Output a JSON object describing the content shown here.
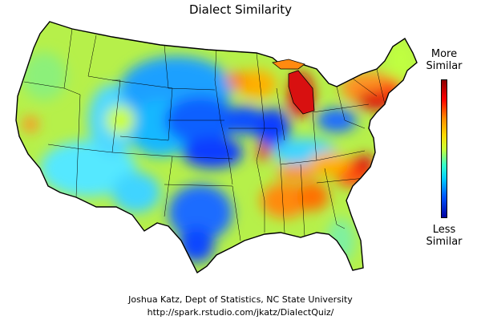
{
  "title": "Dialect Similarity",
  "legend": {
    "top_label_1": "More",
    "top_label_2": "Similar",
    "bottom_label_1": "Less",
    "bottom_label_2": "Similar",
    "scale_colors": [
      "#8b0000",
      "#ff0000",
      "#ff8c00",
      "#ffd700",
      "#ccff33",
      "#33ffcc",
      "#00ccff",
      "#0055ff",
      "#0000a0"
    ]
  },
  "credit": {
    "line1": "Joshua Katz, Dept of Statistics, NC State University",
    "line2": "http://spark.rstudio.com/jkatz/DialectQuiz/"
  },
  "map": {
    "region": "contiguous-us",
    "boundaries": "state-borders",
    "base_color": "#b6f04a",
    "hotspot_colors": {
      "very_high": "#c0000f",
      "high": "#ff4a1a",
      "medium": "#ffb000",
      "low": "#3fe6ff",
      "very_low": "#0a3cff"
    }
  }
}
